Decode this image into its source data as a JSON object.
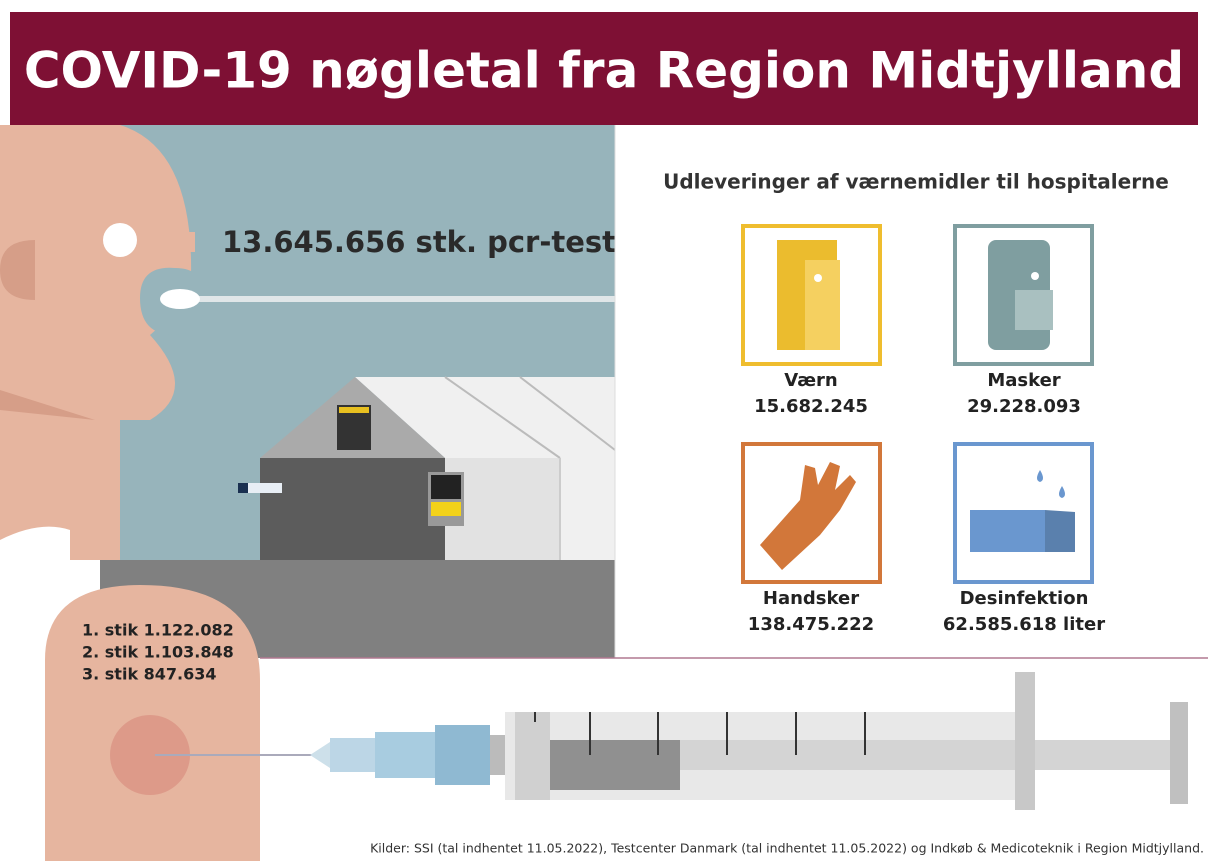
{
  "header": {
    "title": "COVID-19 nøgletal fra Region Midtjylland"
  },
  "pcr_test": "13.645.656 stk. pcr-test",
  "vaccinations": [
    "1. stik 1.122.082",
    "2. stik 1.103.848",
    "3. stik 847.634"
  ],
  "supplies": {
    "title": "Udleveringer af værnemidler til hospitalerne",
    "items": [
      {
        "label": "Værn",
        "value": "15.682.245"
      },
      {
        "label": "Masker",
        "value": "29.228.093"
      },
      {
        "label": "Handsker",
        "value": "138.475.222"
      },
      {
        "label": "Desinfektion",
        "value": "62.585.618 liter"
      }
    ]
  },
  "source": "Kilder: SSI (tal indhentet 11.05.2022), Testcenter Danmark (tal indhentet 11.05.2022) og Indkøb & Medicoteknik i Region Midtjylland."
}
